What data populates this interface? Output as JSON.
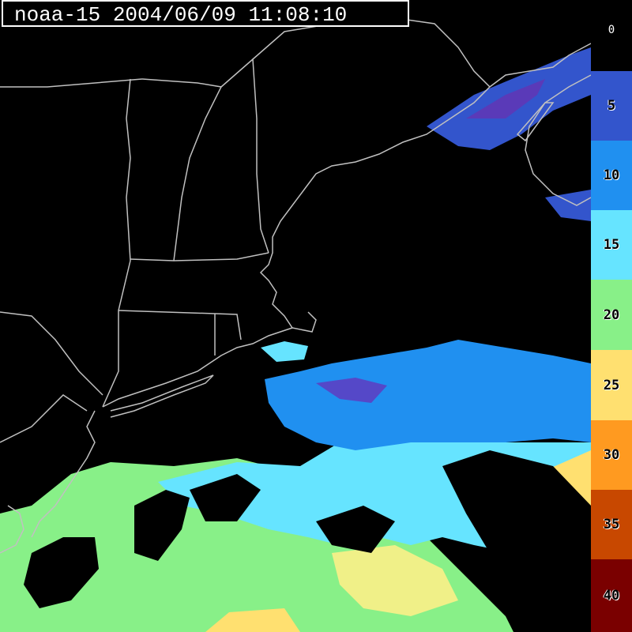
{
  "title": "noaa-15 2004/06/09 11:08:10",
  "colorbar": {
    "segments": [
      {
        "label": "0",
        "color": "#000000"
      },
      {
        "label": "5",
        "color": "#3355cc"
      },
      {
        "label": "10",
        "color": "#2090f0"
      },
      {
        "label": "15",
        "color": "#66e4ff"
      },
      {
        "label": "20",
        "color": "#88f088"
      },
      {
        "label": "25",
        "color": "#ffe070"
      },
      {
        "label": "30",
        "color": "#ff9a20"
      },
      {
        "label": "35",
        "color": "#c84800"
      },
      {
        "label": "40",
        "color": "#7a0000"
      }
    ]
  },
  "colors": {
    "coastline": "#c0c0c0",
    "cloud": "#000000"
  }
}
